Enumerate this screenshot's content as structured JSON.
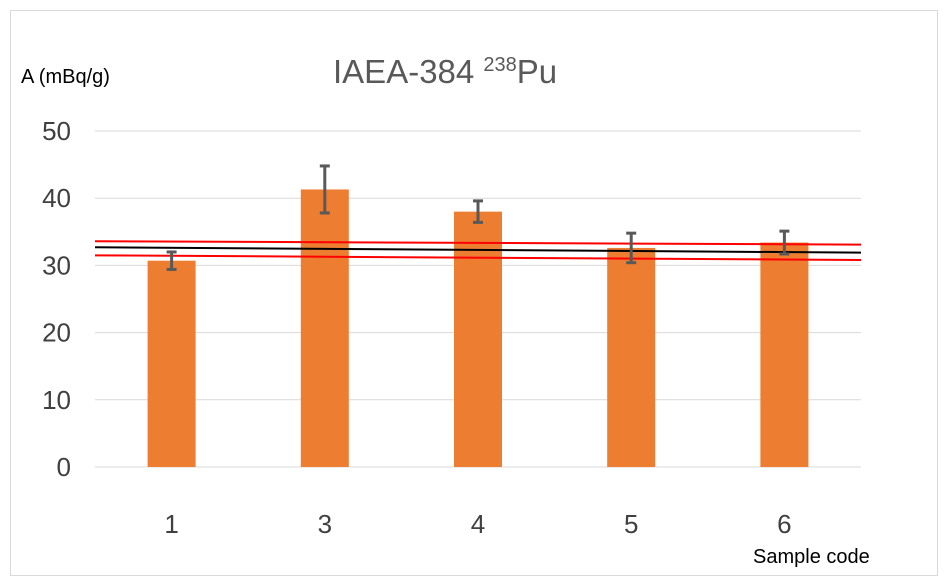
{
  "chart_data": {
    "type": "bar",
    "title": {
      "prefix": "IAEA-384 ",
      "superscript": "238",
      "suffix": "Pu"
    },
    "ylabel": "A (mBq/g)",
    "xlabel": "Sample code",
    "categories": [
      "1",
      "3",
      "4",
      "5",
      "6"
    ],
    "series": [
      {
        "values": [
          30.7,
          41.3,
          38.0,
          32.6,
          33.4
        ],
        "error": [
          1.3,
          3.5,
          1.6,
          2.2,
          1.7
        ]
      }
    ],
    "reference_lines": [
      {
        "color": "#000000",
        "y_start": 32.7,
        "y_end": 31.9
      },
      {
        "color": "#ff0000",
        "y_start": 33.6,
        "y_end": 33.1
      },
      {
        "color": "#ff0000",
        "y_start": 31.5,
        "y_end": 30.8
      }
    ],
    "ylim": [
      0,
      50
    ],
    "yticks": [
      0,
      10,
      20,
      30,
      40,
      50
    ],
    "grid": true,
    "legend": "none",
    "colors": {
      "bar": "#ed7d31",
      "error_bar": "#595959",
      "grid": "#d9d9d9"
    }
  }
}
